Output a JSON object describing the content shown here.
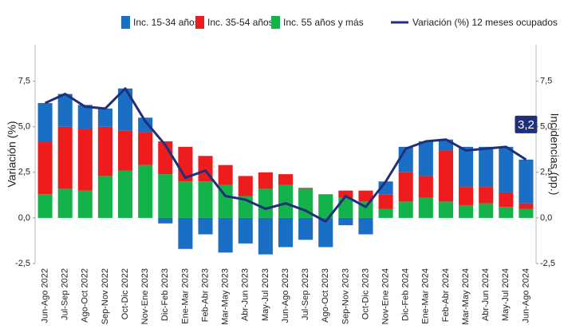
{
  "chart_data": {
    "type": "bar",
    "stacked": true,
    "y_label": "Variación (%)",
    "y2_label": "Incidencias (pp.)",
    "categories": [
      "Jun-Ago 2022",
      "Jul-Sep 2022",
      "Ago-Oct 2022",
      "Sep-Nov 2022",
      "Oct-Dic 2022",
      "Nov-Ene 2023",
      "Dic-Feb 2023",
      "Ene-Mar 2023",
      "Feb-Abr 2023",
      "Mar-May 2023",
      "Abr-Jun 2023",
      "May-Jul 2023",
      "Jun-Ago 2023",
      "Jul-Sep 2023",
      "Ago-Oct 2023",
      "Sep-Nov 2023",
      "Oct-Dic 2023",
      "Nov-Ene 2024",
      "Dic-Feb 2024",
      "Ene-Mar 2024",
      "Feb-Abr 2024",
      "Mar-May 2024",
      "Abr-Jun 2024",
      "May-Jul 2024",
      "Jun-Ago 2024"
    ],
    "series": [
      {
        "name": "Inc. 15-34 años",
        "type": "bar",
        "axis": "y2",
        "color": "#1a6fc4",
        "values": [
          2.1,
          1.8,
          1.3,
          1.0,
          2.3,
          0.8,
          -0.3,
          -1.7,
          -0.9,
          -1.9,
          -1.4,
          -2.0,
          -1.6,
          -1.2,
          -1.6,
          -0.4,
          -0.9,
          0.7,
          1.4,
          1.9,
          0.6,
          2.2,
          2.2,
          2.5,
          2.4
        ]
      },
      {
        "name": "Inc. 35-54 años",
        "type": "bar",
        "axis": "y2",
        "color": "#ee1c1c",
        "values": [
          2.9,
          3.4,
          3.4,
          2.7,
          2.2,
          1.8,
          1.8,
          1.9,
          1.4,
          1.1,
          1.1,
          0.9,
          0.6,
          0.05,
          0,
          0.4,
          0.6,
          0.8,
          1.6,
          1.2,
          2.8,
          1.0,
          0.9,
          0.8,
          0.3
        ]
      },
      {
        "name": "Inc. 55 años y más",
        "type": "bar",
        "axis": "y2",
        "color": "#13b24a",
        "values": [
          1.3,
          1.6,
          1.5,
          2.3,
          2.6,
          2.9,
          2.4,
          2.0,
          2.0,
          1.8,
          1.2,
          1.6,
          1.8,
          1.6,
          1.3,
          1.1,
          0.9,
          0.5,
          0.9,
          1.1,
          0.9,
          0.7,
          0.8,
          0.6,
          0.5
        ]
      },
      {
        "name": "Variación (%) 12 meses ocupados",
        "type": "line",
        "axis": "y",
        "color": "#1f2f7a",
        "values": [
          6.3,
          6.8,
          6.1,
          6.0,
          7.1,
          5.3,
          4.0,
          2.2,
          2.6,
          1.2,
          1.0,
          0.5,
          0.8,
          0.4,
          -0.2,
          1.2,
          0.6,
          2.0,
          3.8,
          4.2,
          4.3,
          3.7,
          3.8,
          3.9,
          3.2
        ],
        "value_labels": [
          null,
          null,
          null,
          null,
          null,
          null,
          null,
          null,
          null,
          null,
          null,
          null,
          null,
          null,
          null,
          null,
          null,
          null,
          null,
          null,
          null,
          null,
          null,
          null,
          "3,2"
        ]
      }
    ],
    "ylim": [
      -2.5,
      9.5
    ],
    "yticks": [
      {
        "value": -2.5,
        "label": "-2,5"
      },
      {
        "value": 0,
        "label": "0,0"
      },
      {
        "value": 2.5,
        "label": "2,5"
      },
      {
        "value": 5,
        "label": "5,0"
      },
      {
        "value": 7.5,
        "label": "7,5"
      }
    ],
    "y2lim": [
      -2.5,
      9.5
    ],
    "y2ticks": [
      {
        "value": -2.5,
        "label": "-2,5"
      },
      {
        "value": 0,
        "label": "0,0"
      },
      {
        "value": 2.5,
        "label": "2,5"
      },
      {
        "value": 5,
        "label": "5,0"
      },
      {
        "value": 7.5,
        "label": "7,5"
      }
    ],
    "grid": false
  }
}
